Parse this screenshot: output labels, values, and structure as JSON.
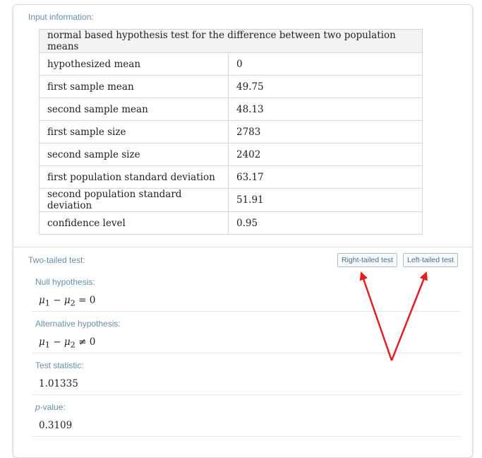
{
  "input_section": {
    "title": "Input information:",
    "table_header": "normal based hypothesis test for the difference between two population means",
    "rows": [
      {
        "label": "hypothesized mean",
        "value": "0"
      },
      {
        "label": "first sample mean",
        "value": "49.75"
      },
      {
        "label": "second sample mean",
        "value": "48.13"
      },
      {
        "label": "first sample size",
        "value": "2783"
      },
      {
        "label": "second sample size",
        "value": "2402"
      },
      {
        "label": "first population standard deviation",
        "value": "63.17"
      },
      {
        "label": "second population standard deviation",
        "value": "51.91"
      },
      {
        "label": "confidence level",
        "value": "0.95"
      }
    ]
  },
  "test_section": {
    "title": "Two-tailed test:",
    "right_button": "Right-tailed test",
    "left_button": "Left-tailed test",
    "null_title": "Null hypothesis:",
    "alt_title": "Alternative hypothesis:",
    "stat_title": "Test statistic:",
    "stat_value": "1.01335",
    "p_title_italic": "p",
    "p_title_rest": "-value:",
    "p_value": "0.3109"
  },
  "formula": {
    "mu": "μ",
    "sub1": "1",
    "sub2": "2",
    "minus": "−",
    "null_rel": "= 0",
    "alt_rel": "≠ 0"
  },
  "colors": {
    "arrow": "#e02020",
    "label": "#6a8ea8"
  }
}
